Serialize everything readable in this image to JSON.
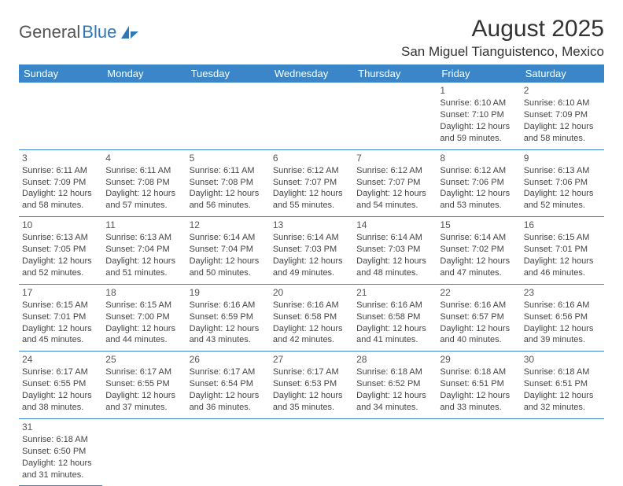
{
  "brand": {
    "general": "General",
    "blue": "Blue",
    "logo_color": "#2f77b8"
  },
  "title": "August 2025",
  "location": "San Miguel Tianguistenco, Mexico",
  "colors": {
    "header_bg": "#3a86c8",
    "header_text": "#ffffff",
    "cell_border": "#3a86c8",
    "text": "#444444",
    "background": "#ffffff"
  },
  "weekdays": [
    "Sunday",
    "Monday",
    "Tuesday",
    "Wednesday",
    "Thursday",
    "Friday",
    "Saturday"
  ],
  "days": {
    "1": {
      "sr": "Sunrise: 6:10 AM",
      "ss": "Sunset: 7:10 PM",
      "d1": "Daylight: 12 hours",
      "d2": "and 59 minutes."
    },
    "2": {
      "sr": "Sunrise: 6:10 AM",
      "ss": "Sunset: 7:09 PM",
      "d1": "Daylight: 12 hours",
      "d2": "and 58 minutes."
    },
    "3": {
      "sr": "Sunrise: 6:11 AM",
      "ss": "Sunset: 7:09 PM",
      "d1": "Daylight: 12 hours",
      "d2": "and 58 minutes."
    },
    "4": {
      "sr": "Sunrise: 6:11 AM",
      "ss": "Sunset: 7:08 PM",
      "d1": "Daylight: 12 hours",
      "d2": "and 57 minutes."
    },
    "5": {
      "sr": "Sunrise: 6:11 AM",
      "ss": "Sunset: 7:08 PM",
      "d1": "Daylight: 12 hours",
      "d2": "and 56 minutes."
    },
    "6": {
      "sr": "Sunrise: 6:12 AM",
      "ss": "Sunset: 7:07 PM",
      "d1": "Daylight: 12 hours",
      "d2": "and 55 minutes."
    },
    "7": {
      "sr": "Sunrise: 6:12 AM",
      "ss": "Sunset: 7:07 PM",
      "d1": "Daylight: 12 hours",
      "d2": "and 54 minutes."
    },
    "8": {
      "sr": "Sunrise: 6:12 AM",
      "ss": "Sunset: 7:06 PM",
      "d1": "Daylight: 12 hours",
      "d2": "and 53 minutes."
    },
    "9": {
      "sr": "Sunrise: 6:13 AM",
      "ss": "Sunset: 7:06 PM",
      "d1": "Daylight: 12 hours",
      "d2": "and 52 minutes."
    },
    "10": {
      "sr": "Sunrise: 6:13 AM",
      "ss": "Sunset: 7:05 PM",
      "d1": "Daylight: 12 hours",
      "d2": "and 52 minutes."
    },
    "11": {
      "sr": "Sunrise: 6:13 AM",
      "ss": "Sunset: 7:04 PM",
      "d1": "Daylight: 12 hours",
      "d2": "and 51 minutes."
    },
    "12": {
      "sr": "Sunrise: 6:14 AM",
      "ss": "Sunset: 7:04 PM",
      "d1": "Daylight: 12 hours",
      "d2": "and 50 minutes."
    },
    "13": {
      "sr": "Sunrise: 6:14 AM",
      "ss": "Sunset: 7:03 PM",
      "d1": "Daylight: 12 hours",
      "d2": "and 49 minutes."
    },
    "14": {
      "sr": "Sunrise: 6:14 AM",
      "ss": "Sunset: 7:03 PM",
      "d1": "Daylight: 12 hours",
      "d2": "and 48 minutes."
    },
    "15": {
      "sr": "Sunrise: 6:14 AM",
      "ss": "Sunset: 7:02 PM",
      "d1": "Daylight: 12 hours",
      "d2": "and 47 minutes."
    },
    "16": {
      "sr": "Sunrise: 6:15 AM",
      "ss": "Sunset: 7:01 PM",
      "d1": "Daylight: 12 hours",
      "d2": "and 46 minutes."
    },
    "17": {
      "sr": "Sunrise: 6:15 AM",
      "ss": "Sunset: 7:01 PM",
      "d1": "Daylight: 12 hours",
      "d2": "and 45 minutes."
    },
    "18": {
      "sr": "Sunrise: 6:15 AM",
      "ss": "Sunset: 7:00 PM",
      "d1": "Daylight: 12 hours",
      "d2": "and 44 minutes."
    },
    "19": {
      "sr": "Sunrise: 6:16 AM",
      "ss": "Sunset: 6:59 PM",
      "d1": "Daylight: 12 hours",
      "d2": "and 43 minutes."
    },
    "20": {
      "sr": "Sunrise: 6:16 AM",
      "ss": "Sunset: 6:58 PM",
      "d1": "Daylight: 12 hours",
      "d2": "and 42 minutes."
    },
    "21": {
      "sr": "Sunrise: 6:16 AM",
      "ss": "Sunset: 6:58 PM",
      "d1": "Daylight: 12 hours",
      "d2": "and 41 minutes."
    },
    "22": {
      "sr": "Sunrise: 6:16 AM",
      "ss": "Sunset: 6:57 PM",
      "d1": "Daylight: 12 hours",
      "d2": "and 40 minutes."
    },
    "23": {
      "sr": "Sunrise: 6:16 AM",
      "ss": "Sunset: 6:56 PM",
      "d1": "Daylight: 12 hours",
      "d2": "and 39 minutes."
    },
    "24": {
      "sr": "Sunrise: 6:17 AM",
      "ss": "Sunset: 6:55 PM",
      "d1": "Daylight: 12 hours",
      "d2": "and 38 minutes."
    },
    "25": {
      "sr": "Sunrise: 6:17 AM",
      "ss": "Sunset: 6:55 PM",
      "d1": "Daylight: 12 hours",
      "d2": "and 37 minutes."
    },
    "26": {
      "sr": "Sunrise: 6:17 AM",
      "ss": "Sunset: 6:54 PM",
      "d1": "Daylight: 12 hours",
      "d2": "and 36 minutes."
    },
    "27": {
      "sr": "Sunrise: 6:17 AM",
      "ss": "Sunset: 6:53 PM",
      "d1": "Daylight: 12 hours",
      "d2": "and 35 minutes."
    },
    "28": {
      "sr": "Sunrise: 6:18 AM",
      "ss": "Sunset: 6:52 PM",
      "d1": "Daylight: 12 hours",
      "d2": "and 34 minutes."
    },
    "29": {
      "sr": "Sunrise: 6:18 AM",
      "ss": "Sunset: 6:51 PM",
      "d1": "Daylight: 12 hours",
      "d2": "and 33 minutes."
    },
    "30": {
      "sr": "Sunrise: 6:18 AM",
      "ss": "Sunset: 6:51 PM",
      "d1": "Daylight: 12 hours",
      "d2": "and 32 minutes."
    },
    "31": {
      "sr": "Sunrise: 6:18 AM",
      "ss": "Sunset: 6:50 PM",
      "d1": "Daylight: 12 hours",
      "d2": "and 31 minutes."
    }
  },
  "grid": [
    [
      "",
      "",
      "",
      "",
      "",
      "1",
      "2"
    ],
    [
      "3",
      "4",
      "5",
      "6",
      "7",
      "8",
      "9"
    ],
    [
      "10",
      "11",
      "12",
      "13",
      "14",
      "15",
      "16"
    ],
    [
      "17",
      "18",
      "19",
      "20",
      "21",
      "22",
      "23"
    ],
    [
      "24",
      "25",
      "26",
      "27",
      "28",
      "29",
      "30"
    ],
    [
      "31",
      "",
      "",
      "",
      "",
      "",
      ""
    ]
  ]
}
